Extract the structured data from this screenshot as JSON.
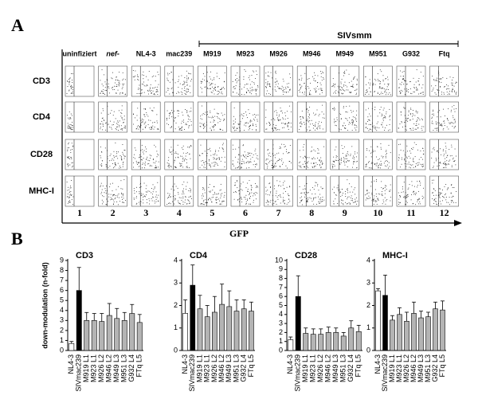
{
  "panel_labels": [
    "A",
    "B"
  ],
  "panel_a": {
    "columns": [
      "uninfiziert",
      "nef-",
      "NL4-3",
      "mac239",
      "M919",
      "M923",
      "M926",
      "M946",
      "M949",
      "M951",
      "G932",
      "Ftq"
    ],
    "group": "SIVsmm",
    "rows": [
      "CD3",
      "CD4",
      "CD28",
      "MHC-I"
    ],
    "numbers": [
      "1",
      "2",
      "3",
      "4",
      "5",
      "6",
      "7",
      "8",
      "9",
      "10",
      "11",
      "12"
    ],
    "xlabel": "GFP"
  },
  "chart_data": [
    {
      "type": "bar",
      "title": "CD3",
      "ylabel": "down-modulation (n-fold)",
      "categories": [
        "NL4-3",
        "SIVmac239",
        "M919 L1",
        "M923 L1",
        "M926 L2",
        "M946 L2",
        "M949 L3",
        "M951 L3",
        "G932 L4",
        "FTq L5"
      ],
      "values": [
        0.7,
        6.0,
        3.0,
        3.0,
        2.9,
        3.5,
        3.2,
        3.0,
        3.7,
        2.8
      ],
      "errors": [
        0.2,
        2.3,
        0.8,
        0.7,
        0.8,
        1.2,
        1.0,
        0.8,
        0.9,
        0.8
      ],
      "colors": [
        "#ffffff",
        "#000000",
        "#b4b4b4",
        "#b4b4b4",
        "#b4b4b4",
        "#b4b4b4",
        "#b4b4b4",
        "#b4b4b4",
        "#b4b4b4",
        "#b4b4b4"
      ],
      "ylim": [
        0,
        9
      ],
      "yticks": [
        0,
        1,
        2,
        3,
        4,
        5,
        6,
        7,
        8,
        9
      ]
    },
    {
      "type": "bar",
      "title": "CD4",
      "categories": [
        "NL4-3",
        "SIVmac239",
        "M919 L1",
        "M923 L1",
        "M926 L2",
        "M946 L2",
        "M949 L3",
        "M951 L3",
        "G932 L4",
        "FTq L5"
      ],
      "values": [
        1.65,
        2.9,
        1.85,
        1.5,
        1.7,
        2.05,
        1.95,
        1.75,
        1.85,
        1.75
      ],
      "errors": [
        0.6,
        0.9,
        0.6,
        0.5,
        0.7,
        0.9,
        0.7,
        0.5,
        0.4,
        0.4
      ],
      "colors": [
        "#ffffff",
        "#000000",
        "#b4b4b4",
        "#b4b4b4",
        "#b4b4b4",
        "#b4b4b4",
        "#b4b4b4",
        "#b4b4b4",
        "#b4b4b4",
        "#b4b4b4"
      ],
      "ylim": [
        0,
        4
      ],
      "yticks": [
        0,
        1,
        2,
        3,
        4
      ]
    },
    {
      "type": "bar",
      "title": "CD28",
      "categories": [
        "NL4-3",
        "SIVmac239",
        "M919 L1",
        "M923 L1",
        "M926 L2",
        "M946 L2",
        "M949 L3",
        "M951 L3",
        "G932 L4",
        "FTq L5"
      ],
      "values": [
        1.2,
        6.0,
        1.9,
        1.8,
        1.8,
        2.0,
        2.0,
        1.6,
        2.5,
        2.1
      ],
      "errors": [
        0.3,
        2.3,
        0.6,
        0.6,
        0.6,
        0.6,
        0.5,
        0.4,
        0.8,
        0.7
      ],
      "colors": [
        "#ffffff",
        "#000000",
        "#b4b4b4",
        "#b4b4b4",
        "#b4b4b4",
        "#b4b4b4",
        "#b4b4b4",
        "#b4b4b4",
        "#b4b4b4",
        "#b4b4b4"
      ],
      "ylim": [
        0,
        10
      ],
      "yticks": [
        0,
        1,
        2,
        3,
        4,
        5,
        6,
        7,
        8,
        9,
        10
      ]
    },
    {
      "type": "bar",
      "title": "MHC-I",
      "categories": [
        "NL4-3",
        "SIVmac239",
        "M919 L1",
        "M923 L1",
        "M926 L2",
        "M946 L2",
        "M949 L3",
        "M951 L3",
        "G932 L4",
        "FTq L5"
      ],
      "values": [
        2.65,
        2.45,
        1.35,
        1.6,
        1.3,
        1.65,
        1.45,
        1.5,
        1.85,
        1.8
      ],
      "errors": [
        0.1,
        0.9,
        0.2,
        0.3,
        0.4,
        0.5,
        0.3,
        0.2,
        0.3,
        0.4
      ],
      "colors": [
        "#ffffff",
        "#000000",
        "#b4b4b4",
        "#b4b4b4",
        "#b4b4b4",
        "#b4b4b4",
        "#b4b4b4",
        "#b4b4b4",
        "#b4b4b4",
        "#b4b4b4"
      ],
      "ylim": [
        0,
        4
      ],
      "yticks": [
        0,
        1,
        2,
        3,
        4
      ]
    }
  ]
}
